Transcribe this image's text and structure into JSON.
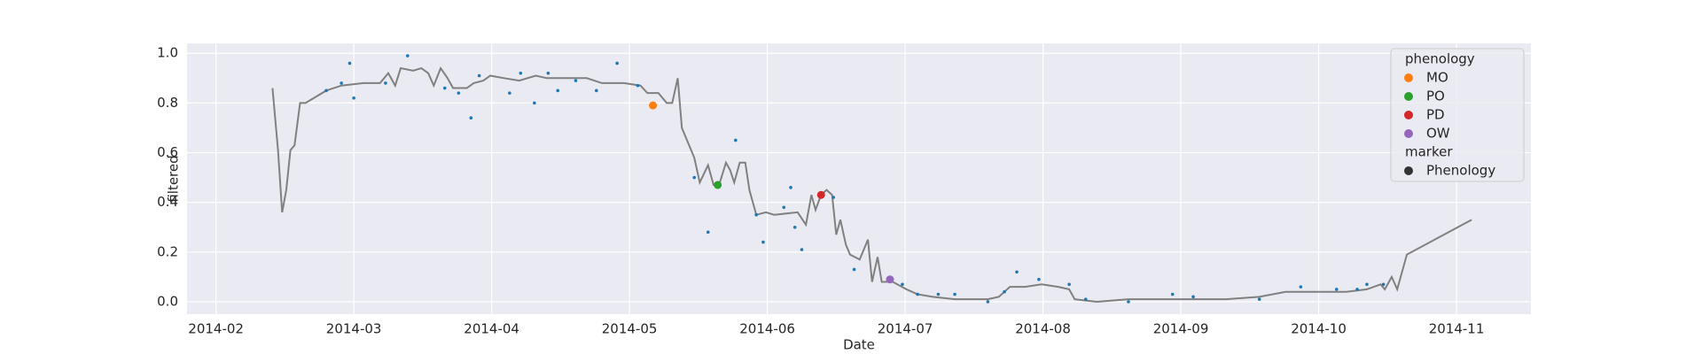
{
  "chart_data": {
    "type": "line",
    "xlabel": "Date",
    "ylabel": "filtered",
    "xlim": [
      1.79,
      11.54
    ],
    "ylim": [
      -0.05,
      1.04
    ],
    "xticks": [
      {
        "value": 2,
        "label": "2014-02"
      },
      {
        "value": 3,
        "label": "2014-03"
      },
      {
        "value": 4,
        "label": "2014-04"
      },
      {
        "value": 5,
        "label": "2014-05"
      },
      {
        "value": 6,
        "label": "2014-06"
      },
      {
        "value": 7,
        "label": "2014-07"
      },
      {
        "value": 8,
        "label": "2014-08"
      },
      {
        "value": 9,
        "label": "2014-09"
      },
      {
        "value": 10,
        "label": "2014-10"
      },
      {
        "value": 11,
        "label": "2014-11"
      }
    ],
    "yticks": [
      {
        "value": 0,
        "label": "0.0"
      },
      0.2,
      0.4,
      0.6,
      0.8,
      {
        "value": 1,
        "label": "1.0"
      }
    ],
    "grid": true,
    "line": {
      "color": "#808080",
      "x": [
        2.41,
        2.45,
        2.48,
        2.51,
        2.54,
        2.57,
        2.61,
        2.65,
        2.8,
        2.91,
        3.07,
        3.19,
        3.25,
        3.3,
        3.34,
        3.43,
        3.49,
        3.54,
        3.58,
        3.63,
        3.68,
        3.72,
        3.82,
        3.87,
        3.94,
        3.99,
        4.09,
        4.2,
        4.32,
        4.4,
        4.53,
        4.69,
        4.8,
        4.96,
        5.08,
        5.13,
        5.21,
        5.27,
        5.31,
        5.35,
        5.38,
        5.47,
        5.51,
        5.57,
        5.61,
        5.65,
        5.7,
        5.73,
        5.76,
        5.8,
        5.84,
        5.87,
        5.92,
        5.99,
        6.05,
        6.22,
        6.28,
        6.32,
        6.35,
        6.39,
        6.43,
        6.47,
        6.5,
        6.53,
        6.57,
        6.6,
        6.67,
        6.73,
        6.76,
        6.8,
        6.83,
        6.91,
        7.01,
        7.09,
        7.2,
        7.36,
        7.6,
        7.68,
        7.76,
        7.87,
        7.99,
        8.11,
        8.19,
        8.23,
        8.39,
        8.62,
        8.94,
        9.33,
        9.57,
        9.76,
        9.96,
        10.2,
        10.35,
        10.45,
        10.48,
        10.53,
        10.57,
        10.61,
        10.64,
        11.11
      ],
      "values": [
        0.86,
        0.61,
        0.36,
        0.45,
        0.61,
        0.63,
        0.8,
        0.8,
        0.85,
        0.87,
        0.88,
        0.88,
        0.92,
        0.87,
        0.94,
        0.93,
        0.94,
        0.92,
        0.87,
        0.94,
        0.9,
        0.86,
        0.86,
        0.88,
        0.89,
        0.91,
        0.9,
        0.89,
        0.91,
        0.9,
        0.9,
        0.9,
        0.88,
        0.88,
        0.87,
        0.84,
        0.84,
        0.8,
        0.8,
        0.9,
        0.7,
        0.58,
        0.48,
        0.55,
        0.47,
        0.47,
        0.56,
        0.53,
        0.48,
        0.56,
        0.56,
        0.45,
        0.35,
        0.36,
        0.35,
        0.36,
        0.31,
        0.43,
        0.37,
        0.43,
        0.45,
        0.43,
        0.27,
        0.33,
        0.23,
        0.19,
        0.17,
        0.25,
        0.08,
        0.18,
        0.08,
        0.08,
        0.05,
        0.03,
        0.02,
        0.01,
        0.01,
        0.02,
        0.06,
        0.06,
        0.07,
        0.06,
        0.05,
        0.01,
        0.0,
        0.01,
        0.01,
        0.01,
        0.02,
        0.04,
        0.04,
        0.04,
        0.05,
        0.07,
        0.05,
        0.1,
        0.05,
        0.13,
        0.19,
        0.33
      ]
    },
    "points": {
      "color": "#1f77b4",
      "x": [
        2.97,
        3.0,
        3.39,
        3.85,
        4.31,
        4.91,
        5.57,
        5.77,
        5.97,
        6.17,
        6.2,
        6.25,
        6.48,
        6.63,
        6.98,
        7.81,
        7.97,
        9.87,
        3.91,
        4.21,
        4.41,
        4.76,
        4.13,
        2.8,
        2.91,
        3.23,
        3.66,
        3.76,
        4.48,
        4.61,
        5.06,
        5.47,
        5.92,
        6.12,
        7.24,
        7.36,
        7.72,
        8.19,
        8.31,
        8.94,
        9.09,
        10.13,
        10.28,
        10.35,
        10.47,
        7.09,
        7.6,
        8.62,
        9.57
      ],
      "values": [
        0.96,
        0.82,
        0.99,
        0.74,
        0.8,
        0.96,
        0.28,
        0.65,
        0.24,
        0.46,
        0.3,
        0.21,
        0.42,
        0.13,
        0.07,
        0.12,
        0.09,
        0.06,
        0.91,
        0.92,
        0.92,
        0.85,
        0.84,
        0.85,
        0.88,
        0.88,
        0.86,
        0.84,
        0.85,
        0.89,
        0.87,
        0.5,
        0.35,
        0.38,
        0.03,
        0.03,
        0.04,
        0.07,
        0.01,
        0.03,
        0.02,
        0.05,
        0.05,
        0.07,
        0.07,
        0.03,
        0.0,
        0.0,
        0.01
      ]
    },
    "legend_title": "phenology",
    "series": [
      {
        "name": "MO",
        "color": "#ff7f0e",
        "x": [
          5.17
        ],
        "values": [
          0.79
        ]
      },
      {
        "name": "PO",
        "color": "#2ca02c",
        "x": [
          5.64
        ],
        "values": [
          0.47
        ]
      },
      {
        "name": "PD",
        "color": "#d62728",
        "x": [
          6.39
        ],
        "values": [
          0.43
        ]
      },
      {
        "name": "OW",
        "color": "#9467bd",
        "x": [
          6.89
        ],
        "values": [
          0.09
        ]
      }
    ],
    "marker_title": "marker",
    "marker_label": "Phenology",
    "marker_color": "#333333",
    "legend_position": "upper right"
  }
}
